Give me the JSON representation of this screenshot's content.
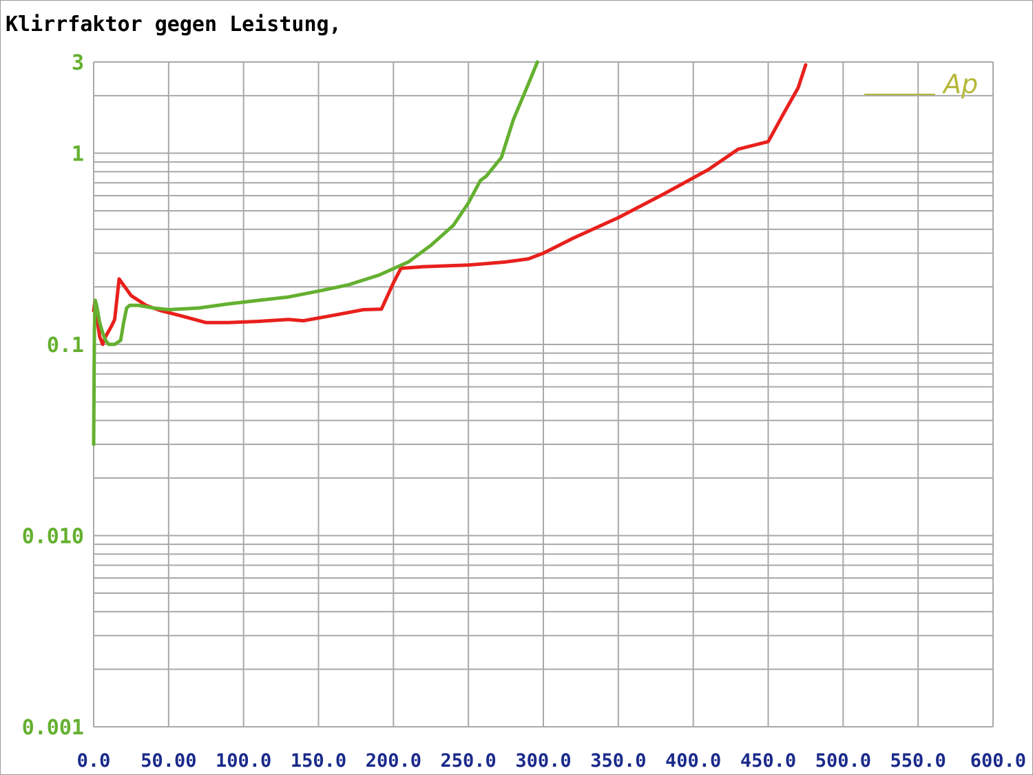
{
  "title": "Klirrfaktor gegen Leistung,",
  "colors": {
    "red_series": "#e8201c",
    "green_series": "#64b030",
    "x_ticks": "#1a2a8a",
    "y_ticks": "#64b030",
    "grid": "#a8a8a8",
    "logo": "#b5b838"
  },
  "logo_text": "Ap",
  "chart_data": {
    "type": "line",
    "title": "Klirrfaktor gegen Leistung,",
    "xlabel": "",
    "ylabel": "",
    "xlim": [
      0,
      600
    ],
    "ylim": [
      0.001,
      3
    ],
    "yscale": "log",
    "grid": true,
    "x_tick_labels": [
      "0.0",
      "50.00",
      "100.0",
      "150.0",
      "200.0",
      "250.0",
      "300.0",
      "350.0",
      "400.0",
      "450.0",
      "500.0",
      "550.0",
      "600.0"
    ],
    "x_tick_values": [
      0,
      50,
      100,
      150,
      200,
      250,
      300,
      350,
      400,
      450,
      500,
      550,
      600
    ],
    "y_tick_labels": [
      "3",
      "1",
      "0.1",
      "0.010",
      "0.001"
    ],
    "y_tick_values": [
      3,
      1,
      0.1,
      0.01,
      0.001
    ],
    "series": [
      {
        "color": "red",
        "x": [
          0,
          1,
          2,
          4,
          6,
          8,
          12,
          14,
          17,
          25,
          35,
          45,
          60,
          75,
          90,
          110,
          130,
          140,
          160,
          180,
          192,
          200,
          205,
          220,
          250,
          275,
          290,
          300,
          320,
          350,
          380,
          410,
          430,
          450,
          460,
          470,
          475
        ],
        "y": [
          0.15,
          0.17,
          0.14,
          0.11,
          0.1,
          0.11,
          0.125,
          0.135,
          0.22,
          0.18,
          0.16,
          0.15,
          0.14,
          0.13,
          0.13,
          0.132,
          0.135,
          0.133,
          0.142,
          0.152,
          0.153,
          0.21,
          0.25,
          0.255,
          0.26,
          0.27,
          0.28,
          0.3,
          0.36,
          0.46,
          0.61,
          0.82,
          1.05,
          1.15,
          1.6,
          2.2,
          2.9
        ]
      },
      {
        "color": "green",
        "x": [
          0,
          0.5,
          1,
          2,
          4,
          6,
          8,
          10,
          14,
          18,
          20,
          22,
          24,
          30,
          40,
          50,
          70,
          90,
          110,
          130,
          150,
          170,
          190,
          210,
          225,
          240,
          250,
          258,
          262,
          272,
          280,
          290,
          296
        ],
        "y": [
          0.03,
          0.12,
          0.17,
          0.16,
          0.13,
          0.115,
          0.105,
          0.1,
          0.1,
          0.105,
          0.13,
          0.155,
          0.16,
          0.16,
          0.155,
          0.152,
          0.155,
          0.163,
          0.17,
          0.177,
          0.19,
          0.205,
          0.23,
          0.27,
          0.33,
          0.42,
          0.55,
          0.72,
          0.76,
          0.95,
          1.5,
          2.3,
          3.0
        ]
      }
    ]
  }
}
